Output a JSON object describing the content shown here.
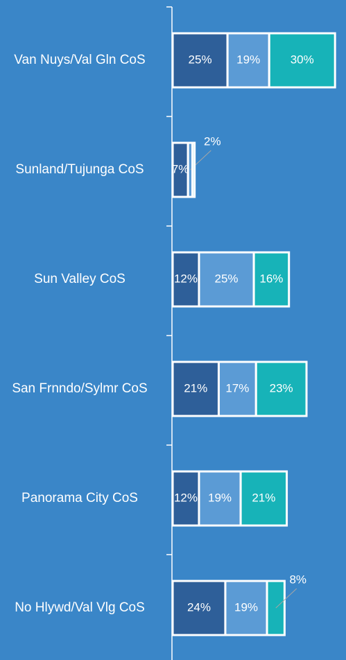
{
  "chart_data": {
    "type": "stacked_bar_horizontal",
    "categories": [
      "Van Nuys/Val Gln CoS",
      "Sunland/Tujunga CoS",
      "Sun Valley CoS",
      "San Frnndo/Sylmr CoS",
      "Panorama City CoS",
      "No Hlywd/Val Vlg CoS"
    ],
    "series": [
      {
        "color": "#2e5f99",
        "values": [
          25,
          7,
          12,
          21,
          12,
          24
        ],
        "value_labels": [
          "25%",
          "7%",
          "12%",
          "21%",
          "12%",
          "24%"
        ]
      },
      {
        "color": "#5b9bd5",
        "values": [
          19,
          2,
          25,
          17,
          19,
          19
        ],
        "value_labels": [
          "19%",
          "2%",
          "25%",
          "17%",
          "19%",
          "19%"
        ]
      },
      {
        "color": "#17b3b8",
        "values": [
          30,
          1,
          16,
          23,
          21,
          8
        ],
        "value_labels": [
          "30%",
          null,
          "16%",
          "23%",
          "21%",
          "8%"
        ]
      }
    ],
    "xlim": [
      0,
      79
    ]
  }
}
